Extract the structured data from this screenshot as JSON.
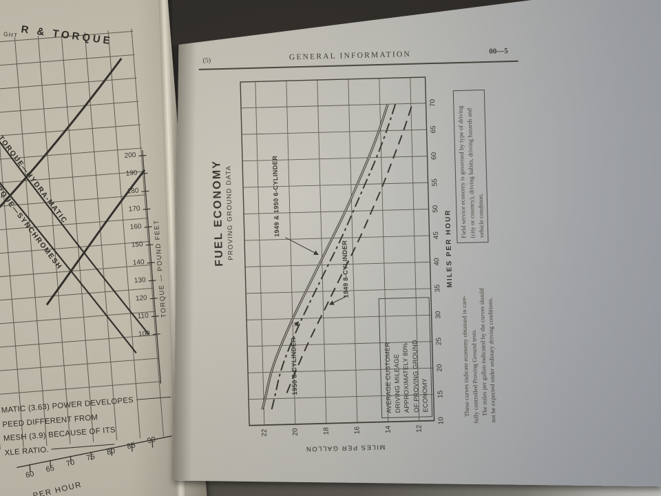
{
  "scene": {
    "description": "Photograph of an open car service manual showing fuel economy and torque charts",
    "background_color": "#2e2b27",
    "left_page_color": "#cdc7b6",
    "right_page_color": "#bfbeb7",
    "ink_color": "#34322b"
  },
  "left_page": {
    "title_partial": "R & TORQUE",
    "title_fragment_small": "GHT",
    "caption_lines": [
      "MATIC (3.63) POWER DEVELOPES",
      "PEED DIFFERENT FROM",
      "MESH (3.9) BECAUSE OF ITS",
      "XLE RATIO."
    ]
  },
  "right_page": {
    "header": {
      "left": "(5)",
      "center": "GENERAL INFORMATION",
      "right": "00—5"
    },
    "footnotes": {
      "plain_lines": [
        "These curves indicate economy obtained in care-",
        "fully controlled Proving Ground tests.",
        "The miles per gallon indicated by the curves should",
        "not be expected under ordinary driving conditions."
      ],
      "boxed_lines": [
        "Field service economy is governed by type of driving",
        "(city or country), driving habits, driving hazards and",
        "vehicle condition."
      ]
    }
  },
  "chart_data": [
    {
      "type": "line",
      "title": "FUEL ECONOMY",
      "subtitle": "PROVING GROUND DATA",
      "xlabel": "MILES PER HOUR",
      "ylabel": "MILES PER GALLON",
      "xlim": [
        10,
        75
      ],
      "ylim": [
        11,
        23
      ],
      "x_ticks": [
        10,
        15,
        20,
        25,
        30,
        35,
        40,
        45,
        50,
        55,
        60,
        65,
        70
      ],
      "y_ticks": [
        22,
        20,
        18,
        16,
        14,
        12
      ],
      "grid": true,
      "orientation_on_page": "rotated-90-ccw",
      "series": [
        {
          "name": "1949 & 1950 6-CYLINDER",
          "style": "double-solid",
          "points": [
            [
              13,
              22.1
            ],
            [
              15,
              21.9
            ],
            [
              20,
              21.5
            ],
            [
              25,
              20.8
            ],
            [
              30,
              20.0
            ],
            [
              35,
              19.1
            ],
            [
              40,
              18.2
            ],
            [
              45,
              17.3
            ],
            [
              50,
              16.4
            ],
            [
              55,
              15.6
            ],
            [
              60,
              14.8
            ],
            [
              65,
              14.1
            ],
            [
              70,
              13.5
            ]
          ]
        },
        {
          "name": "1950 8-CYLINDER",
          "style": "dash-dot",
          "points": [
            [
              13,
              21.5
            ],
            [
              15,
              21.3
            ],
            [
              20,
              20.9
            ],
            [
              25,
              20.2
            ],
            [
              30,
              19.4
            ],
            [
              35,
              18.5
            ],
            [
              40,
              17.6
            ],
            [
              45,
              16.7
            ],
            [
              50,
              15.9
            ],
            [
              55,
              15.1
            ],
            [
              60,
              14.3
            ],
            [
              65,
              13.6
            ],
            [
              70,
              13.0
            ]
          ]
        },
        {
          "name": "1949 8-CYLINDER",
          "style": "dashed",
          "points": [
            [
              16,
              20.5
            ],
            [
              18,
              20.2
            ],
            [
              20,
              19.9
            ],
            [
              25,
              19.1
            ],
            [
              30,
              18.2
            ],
            [
              35,
              17.3
            ],
            [
              40,
              16.4
            ],
            [
              45,
              15.5
            ],
            [
              50,
              14.7
            ],
            [
              55,
              13.9
            ],
            [
              60,
              13.2
            ],
            [
              65,
              12.5
            ],
            [
              70,
              11.9
            ]
          ]
        }
      ],
      "annotation_box_lines": [
        "AVERAGE CUSTOMER",
        "DRIVING MILEAGE",
        "APPROXIMATELY 80%",
        "OF PROVING GROUND",
        "ECONOMY"
      ]
    },
    {
      "type": "line",
      "title_partial": "R & TORQUE",
      "xlabel_partial": "PER HOUR",
      "ylabel": "TORQUE — POUND FEET",
      "x_ticks": [
        60,
        65,
        70,
        75,
        80,
        85,
        90
      ],
      "y_ticks": [
        100,
        110,
        120,
        130,
        140,
        150,
        160,
        170,
        180,
        190,
        200
      ],
      "visibility": "partial, left page",
      "series": [
        {
          "name": "TORQUE—HYDRA-MATIC",
          "style": "solid"
        },
        {
          "name": "TORQUE—SYNCHROMESH",
          "style": "solid"
        }
      ]
    }
  ]
}
